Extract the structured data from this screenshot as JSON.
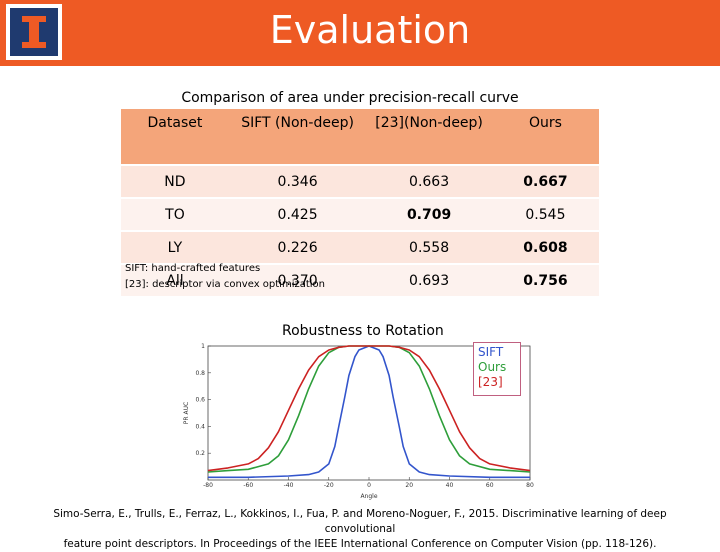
{
  "slide": {
    "title": "Evaluation",
    "table_caption": "Comparison of area under precision-recall curve",
    "table": {
      "headers": [
        "Dataset",
        "SIFT (Non-deep)",
        "[23](Non-deep)",
        "Ours"
      ],
      "rows": [
        {
          "dataset": "ND",
          "sift": "0.346",
          "ref23": "0.663",
          "ours": "0.667",
          "best": "ours"
        },
        {
          "dataset": "TO",
          "sift": "0.425",
          "ref23": "0.709",
          "ours": "0.545",
          "best": "ref23"
        },
        {
          "dataset": "LY",
          "sift": "0.226",
          "ref23": "0.558",
          "ours": "0.608",
          "best": "ours"
        },
        {
          "dataset": "All",
          "sift": "0.370",
          "ref23": "0.693",
          "ours": "0.756",
          "best": "ours"
        }
      ]
    },
    "note_sift": "SIFT: hand-crafted features",
    "note_23": "[23]: descriptor via convex optimization",
    "plot_title": "Robustness to Rotation",
    "reference_line1": "Simo-Serra, E., Trulls, E., Ferraz, L., Kokkinos, I., Fua, P. and Moreno-Noguer, F., 2015. Discriminative learning of deep convolutional",
    "reference_line2": "feature point descriptors. In Proceedings of the IEEE International Conference on Computer Vision (pp. 118-126)."
  },
  "colors": {
    "header": "#ee5a24",
    "logo": "#1f3a6f",
    "sift": "#3355cc",
    "ours": "#2e9e3a",
    "ref23": "#cc2222"
  },
  "chart_data": {
    "type": "line",
    "xlabel": "Angle",
    "ylabel": "PR AUC",
    "xlim": [
      -80,
      80
    ],
    "ylim": [
      0,
      1
    ],
    "xticks": [
      "-80",
      "-60",
      "-40",
      "-20",
      "0",
      "20",
      "40",
      "60",
      "80"
    ],
    "yticks": [
      "0.2",
      "0.4",
      "0.6",
      "0.8",
      "1"
    ],
    "series": [
      {
        "name": "SIFT",
        "color": "#3355cc",
        "x": [
          -80,
          -60,
          -40,
          -30,
          -25,
          -20,
          -17,
          -15,
          -12,
          -10,
          -7,
          -5,
          0,
          5,
          7,
          10,
          12,
          15,
          17,
          20,
          25,
          30,
          40,
          60,
          80
        ],
        "y": [
          0.02,
          0.02,
          0.03,
          0.04,
          0.06,
          0.12,
          0.25,
          0.4,
          0.62,
          0.78,
          0.92,
          0.97,
          1.0,
          0.97,
          0.92,
          0.78,
          0.62,
          0.4,
          0.25,
          0.12,
          0.06,
          0.04,
          0.03,
          0.02,
          0.02
        ]
      },
      {
        "name": "Ours",
        "color": "#2e9e3a",
        "x": [
          -80,
          -70,
          -60,
          -50,
          -45,
          -40,
          -35,
          -30,
          -25,
          -20,
          -15,
          -10,
          -5,
          0,
          5,
          10,
          15,
          20,
          25,
          30,
          35,
          40,
          45,
          50,
          60,
          70,
          80
        ],
        "y": [
          0.06,
          0.07,
          0.08,
          0.12,
          0.18,
          0.3,
          0.48,
          0.68,
          0.85,
          0.95,
          0.99,
          1.0,
          1.0,
          1.0,
          1.0,
          1.0,
          0.99,
          0.95,
          0.85,
          0.68,
          0.48,
          0.3,
          0.18,
          0.12,
          0.08,
          0.07,
          0.06
        ]
      },
      {
        "name": "[23]",
        "color": "#cc2222",
        "x": [
          -80,
          -70,
          -60,
          -55,
          -50,
          -45,
          -40,
          -35,
          -30,
          -25,
          -20,
          -15,
          -10,
          -5,
          0,
          5,
          10,
          15,
          20,
          25,
          30,
          35,
          40,
          45,
          50,
          55,
          60,
          70,
          80
        ],
        "y": [
          0.07,
          0.09,
          0.12,
          0.16,
          0.24,
          0.36,
          0.52,
          0.68,
          0.82,
          0.92,
          0.97,
          0.99,
          1.0,
          1.0,
          1.0,
          1.0,
          1.0,
          0.99,
          0.97,
          0.92,
          0.82,
          0.68,
          0.52,
          0.36,
          0.24,
          0.16,
          0.12,
          0.09,
          0.07
        ]
      }
    ]
  }
}
